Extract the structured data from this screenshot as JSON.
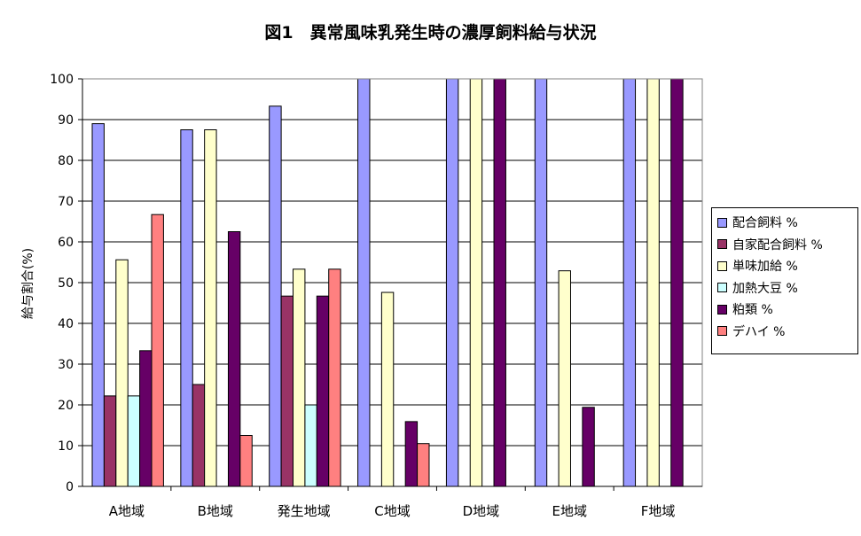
{
  "chart_data": {
    "type": "bar",
    "title": "図1　異常風味乳発生時の濃厚飼料給与状況",
    "ylabel": "給与割合(%)",
    "xlabel": "",
    "ylim": [
      0,
      100
    ],
    "yticks": [
      0,
      10,
      20,
      30,
      40,
      50,
      60,
      70,
      80,
      90,
      100
    ],
    "grid": true,
    "legend_position": "right",
    "categories": [
      "A地域",
      "B地域",
      "発生地域",
      "C地域",
      "D地域",
      "E地域",
      "F地域"
    ],
    "series": [
      {
        "name": "配合飼料 %",
        "color": "#9999FF",
        "values": [
          89,
          87.5,
          93.3,
          100,
          100,
          100,
          100
        ]
      },
      {
        "name": "自家配合飼料 %",
        "color": "#993366",
        "values": [
          22.2,
          25,
          46.7,
          0,
          0,
          0,
          0
        ]
      },
      {
        "name": "単味加給 %",
        "color": "#FFFFCC",
        "values": [
          55.6,
          87.5,
          53.3,
          47.6,
          100,
          52.9,
          100
        ]
      },
      {
        "name": "加熱大豆 %",
        "color": "#CCFFFF",
        "values": [
          22.2,
          0,
          20,
          0,
          0,
          0,
          0
        ]
      },
      {
        "name": "粕類 %",
        "color": "#660066",
        "values": [
          33.3,
          62.5,
          46.7,
          15.9,
          100,
          19.4,
          100
        ]
      },
      {
        "name": "デハイ %",
        "color": "#FF8080",
        "values": [
          66.7,
          12.5,
          53.3,
          10.5,
          0,
          0,
          0
        ]
      }
    ]
  }
}
